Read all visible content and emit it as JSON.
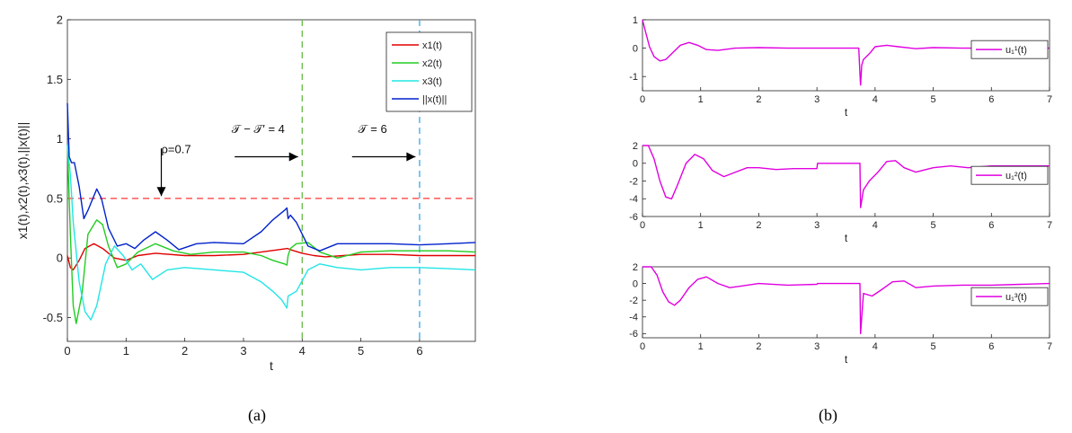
{
  "captions": {
    "left": "(a)",
    "right": "(b)"
  },
  "chart_data": [
    {
      "id": "a",
      "type": "line",
      "xlabel": "t",
      "ylabel": "x1(t),x2(t),x3(t),||x(t)||",
      "xlim": [
        0,
        6.95
      ],
      "ylim": [
        -0.7,
        2
      ],
      "xticks": [
        0,
        1,
        2,
        3,
        4,
        5,
        6
      ],
      "yticks": [
        -0.5,
        0,
        0.5,
        1,
        1.5,
        2
      ],
      "grid": false,
      "legend_position": "top-right",
      "series": [
        {
          "name": "x1(t)",
          "color": "#e00000",
          "x": [
            0,
            0.05,
            0.1,
            0.2,
            0.3,
            0.45,
            0.6,
            0.8,
            1.0,
            1.2,
            1.5,
            2,
            2.5,
            3,
            3.3,
            3.6,
            3.75,
            3.8,
            4.0,
            4.2,
            4.4,
            4.7,
            5,
            5.5,
            6,
            6.5,
            6.95
          ],
          "y": [
            0.02,
            -0.08,
            -0.1,
            -0.02,
            0.08,
            0.12,
            0.08,
            0.0,
            -0.02,
            0.02,
            0.04,
            0.02,
            0.02,
            0.03,
            0.05,
            0.07,
            0.08,
            0.07,
            0.04,
            0.02,
            0.01,
            0.02,
            0.03,
            0.03,
            0.02,
            0.02,
            0.02
          ]
        },
        {
          "name": "x2(t)",
          "color": "#22cc22",
          "x": [
            0,
            0.05,
            0.1,
            0.15,
            0.25,
            0.35,
            0.5,
            0.6,
            0.7,
            0.85,
            1.0,
            1.2,
            1.5,
            1.8,
            2.1,
            2.5,
            3,
            3.3,
            3.5,
            3.7,
            3.74,
            3.76,
            3.8,
            3.9,
            4.1,
            4.3,
            4.6,
            5,
            5.5,
            6,
            6.5,
            6.95
          ],
          "y": [
            0.95,
            0.2,
            -0.4,
            -0.55,
            -0.3,
            0.2,
            0.32,
            0.28,
            0.1,
            -0.08,
            -0.05,
            0.05,
            0.12,
            0.06,
            0.03,
            0.05,
            0.05,
            0.02,
            -0.02,
            -0.05,
            -0.06,
            0.02,
            0.08,
            0.12,
            0.13,
            0.05,
            0.0,
            0.05,
            0.06,
            0.06,
            0.06,
            0.05
          ]
        },
        {
          "name": "x3(t)",
          "color": "#22e5e5",
          "x": [
            0,
            0.05,
            0.1,
            0.2,
            0.3,
            0.4,
            0.5,
            0.65,
            0.8,
            0.95,
            1.1,
            1.25,
            1.45,
            1.7,
            2,
            2.5,
            3,
            3.3,
            3.5,
            3.65,
            3.74,
            3.76,
            3.9,
            4.1,
            4.3,
            4.6,
            5,
            5.5,
            6,
            6.5,
            6.95
          ],
          "y": [
            0.95,
            0.7,
            0.3,
            -0.2,
            -0.45,
            -0.52,
            -0.4,
            -0.05,
            0.1,
            0.02,
            -0.1,
            -0.05,
            -0.18,
            -0.1,
            -0.08,
            -0.1,
            -0.12,
            -0.2,
            -0.28,
            -0.35,
            -0.42,
            -0.32,
            -0.28,
            -0.1,
            -0.05,
            -0.08,
            -0.1,
            -0.08,
            -0.08,
            -0.09,
            -0.1
          ]
        },
        {
          "name": "||x(t)||",
          "color": "#0022cc",
          "x": [
            0,
            0.03,
            0.07,
            0.12,
            0.2,
            0.28,
            0.35,
            0.5,
            0.58,
            0.7,
            0.85,
            1.0,
            1.15,
            1.3,
            1.5,
            1.7,
            1.9,
            2.2,
            2.5,
            3,
            3.3,
            3.5,
            3.7,
            3.74,
            3.76,
            3.8,
            3.9,
            4.1,
            4.3,
            4.6,
            5,
            5.5,
            6,
            6.5,
            6.95
          ],
          "y": [
            1.3,
            0.85,
            0.8,
            0.8,
            0.6,
            0.33,
            0.4,
            0.58,
            0.5,
            0.25,
            0.1,
            0.12,
            0.08,
            0.15,
            0.22,
            0.15,
            0.07,
            0.12,
            0.13,
            0.12,
            0.22,
            0.32,
            0.4,
            0.42,
            0.33,
            0.36,
            0.3,
            0.1,
            0.06,
            0.12,
            0.12,
            0.12,
            0.11,
            0.12,
            0.13
          ]
        }
      ],
      "reference_lines": [
        {
          "orientation": "horizontal",
          "value": 0.5,
          "color": "#ff3333"
        },
        {
          "orientation": "vertical",
          "value": 4,
          "color": "#66bb44"
        },
        {
          "orientation": "vertical",
          "value": 6,
          "color": "#33aaee"
        }
      ],
      "annotations": [
        {
          "text": "ρ=0.7",
          "x": 1.6,
          "y": 0.88
        },
        {
          "text": "𝒯 − 𝒯′ = 4",
          "x": 3.25,
          "y": 1.05
        },
        {
          "text": "𝒯 = 6",
          "x": 5.2,
          "y": 1.05
        }
      ]
    },
    {
      "id": "b1",
      "type": "line",
      "xlabel": "t",
      "xlim": [
        0,
        7
      ],
      "ylim": [
        -1.5,
        1
      ],
      "xticks": [
        0,
        1,
        2,
        3,
        4,
        5,
        6,
        7
      ],
      "yticks": [
        -1,
        0,
        1
      ],
      "legend_position": "right",
      "series": [
        {
          "name": "u₁¹(t)",
          "color": "#e000e0",
          "x": [
            0,
            0.05,
            0.12,
            0.2,
            0.3,
            0.4,
            0.5,
            0.65,
            0.8,
            0.95,
            1.1,
            1.3,
            1.6,
            2,
            2.5,
            3,
            3.5,
            3.72,
            3.74,
            3.75,
            3.77,
            3.8,
            3.9,
            4.0,
            4.2,
            4.4,
            4.7,
            5,
            5.5,
            6,
            6.5,
            7
          ],
          "y": [
            1,
            0.6,
            0.05,
            -0.3,
            -0.45,
            -0.4,
            -0.2,
            0.1,
            0.2,
            0.1,
            -0.05,
            -0.08,
            0.0,
            0.02,
            0.0,
            0.0,
            0.0,
            0.0,
            -0.9,
            -1.3,
            -0.6,
            -0.4,
            -0.2,
            0.05,
            0.1,
            0.05,
            -0.02,
            0.02,
            0.0,
            0.0,
            0.0,
            0.0
          ]
        }
      ]
    },
    {
      "id": "b2",
      "type": "line",
      "xlabel": "t",
      "xlim": [
        0,
        7
      ],
      "ylim": [
        -6,
        2
      ],
      "xticks": [
        0,
        1,
        2,
        3,
        4,
        5,
        6,
        7
      ],
      "yticks": [
        -6,
        -4,
        -2,
        0,
        2
      ],
      "legend_position": "right",
      "series": [
        {
          "name": "u₁²(t)",
          "color": "#e000e0",
          "x": [
            0,
            0.1,
            0.2,
            0.3,
            0.4,
            0.5,
            0.6,
            0.75,
            0.9,
            1.05,
            1.2,
            1.4,
            1.6,
            1.8,
            2,
            2.3,
            2.6,
            3,
            3.01,
            3.5,
            3.74,
            3.75,
            3.8,
            3.9,
            4.05,
            4.2,
            4.35,
            4.5,
            4.7,
            5,
            5.3,
            5.6,
            6,
            6.5,
            7
          ],
          "y": [
            2,
            2,
            0.5,
            -2,
            -3.8,
            -4,
            -2.5,
            0,
            1,
            0.5,
            -0.8,
            -1.5,
            -1,
            -0.5,
            -0.5,
            -0.7,
            -0.6,
            -0.6,
            0,
            0,
            0,
            -5,
            -3,
            -2,
            -1,
            0.2,
            0.3,
            -0.5,
            -1,
            -0.5,
            -0.3,
            -0.5,
            -0.3,
            -0.3,
            -0.3
          ]
        }
      ]
    },
    {
      "id": "b3",
      "type": "line",
      "xlabel": "t",
      "xlim": [
        0,
        7
      ],
      "ylim": [
        -6.5,
        2
      ],
      "xticks": [
        0,
        1,
        2,
        3,
        4,
        5,
        6,
        7
      ],
      "yticks": [
        -6,
        -4,
        -2,
        0,
        2
      ],
      "legend_position": "right",
      "series": [
        {
          "name": "u₁³(t)",
          "color": "#e000e0",
          "x": [
            0,
            0.15,
            0.25,
            0.35,
            0.45,
            0.55,
            0.65,
            0.8,
            0.95,
            1.1,
            1.3,
            1.5,
            1.7,
            2,
            2.5,
            3,
            3.01,
            3.5,
            3.74,
            3.75,
            3.8,
            3.95,
            4.1,
            4.3,
            4.5,
            4.7,
            5,
            5.5,
            6,
            6.5,
            7
          ],
          "y": [
            2,
            2,
            1,
            -1,
            -2.2,
            -2.6,
            -2,
            -0.5,
            0.5,
            0.8,
            0,
            -0.5,
            -0.3,
            0,
            -0.2,
            -0.1,
            0,
            0,
            0,
            -6,
            -1.2,
            -1.5,
            -0.8,
            0.2,
            0.3,
            -0.5,
            -0.3,
            -0.2,
            -0.2,
            -0.1,
            0
          ]
        }
      ]
    }
  ]
}
